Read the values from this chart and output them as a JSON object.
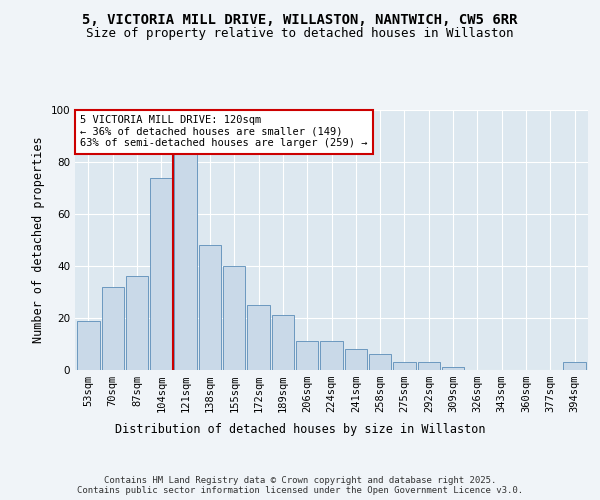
{
  "title": "5, VICTORIA MILL DRIVE, WILLASTON, NANTWICH, CW5 6RR",
  "subtitle": "Size of property relative to detached houses in Willaston",
  "xlabel": "Distribution of detached houses by size in Willaston",
  "ylabel": "Number of detached properties",
  "bar_color": "#c9d9e8",
  "bar_edge_color": "#5b8db8",
  "background_color": "#dde8f0",
  "fig_background": "#f0f4f8",
  "categories": [
    "53sqm",
    "70sqm",
    "87sqm",
    "104sqm",
    "121sqm",
    "138sqm",
    "155sqm",
    "172sqm",
    "189sqm",
    "206sqm",
    "224sqm",
    "241sqm",
    "258sqm",
    "275sqm",
    "292sqm",
    "309sqm",
    "326sqm",
    "343sqm",
    "360sqm",
    "377sqm",
    "394sqm"
  ],
  "values": [
    19,
    32,
    36,
    74,
    84,
    48,
    40,
    25,
    21,
    11,
    11,
    8,
    6,
    3,
    3,
    1,
    0,
    0,
    0,
    0,
    3
  ],
  "vline_x_idx": 4,
  "vline_color": "#cc0000",
  "annotation_text": "5 VICTORIA MILL DRIVE: 120sqm\n← 36% of detached houses are smaller (149)\n63% of semi-detached houses are larger (259) →",
  "annotation_box_facecolor": "#ffffff",
  "annotation_box_edgecolor": "#cc0000",
  "ylim": [
    0,
    100
  ],
  "yticks": [
    0,
    20,
    40,
    60,
    80,
    100
  ],
  "footer_text": "Contains HM Land Registry data © Crown copyright and database right 2025.\nContains public sector information licensed under the Open Government Licence v3.0.",
  "title_fontsize": 10,
  "subtitle_fontsize": 9,
  "axis_label_fontsize": 8.5,
  "tick_fontsize": 7.5,
  "annotation_fontsize": 7.5,
  "footer_fontsize": 6.5
}
